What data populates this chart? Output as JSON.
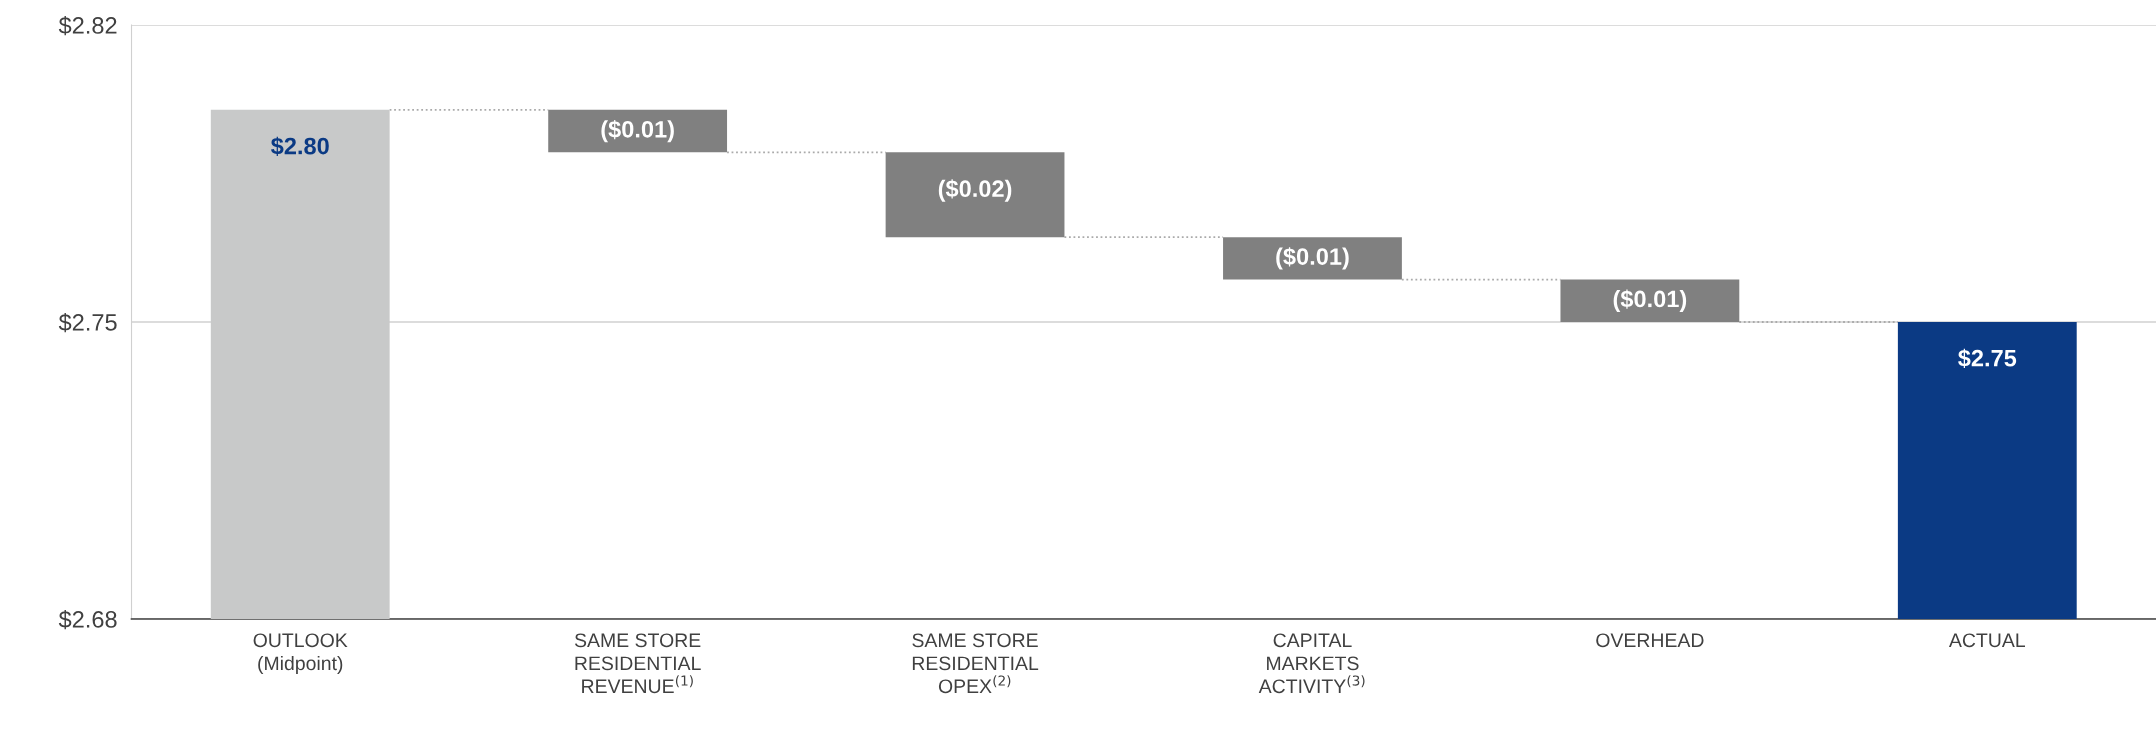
{
  "chart_data": {
    "type": "bar",
    "categories": [
      "OUTLOOK\n(Midpoint)",
      "SAME STORE\nRESIDENTIAL\nREVENUE$^{(1)}$",
      "SAME STORE\nRESIDENTIAL\nOPEX$^{(2)}$",
      "CAPITAL\nMARKETS\nACTIVITY$^{(3)}$",
      "OVERHEAD",
      "ACTUAL"
    ],
    "base": [
      2.68,
      2.8,
      2.79,
      2.77,
      2.76,
      2.68
    ],
    "values": [
      0.12,
      -0.01,
      -0.02,
      -0.01,
      -0.01,
      0.07
    ],
    "colors": [
      "#c8c9c9",
      "#808080",
      "#808080",
      "#808080",
      "#808080",
      "#0b3a84"
    ],
    "value_labels": [
      "$2.80",
      "($0.01)",
      "($0.02)",
      "($0.01)",
      "($0.01)",
      "$2.75"
    ],
    "ylim": [
      2.68,
      2.82
    ],
    "yticks": [
      {
        "value": 2.68,
        "label": "$2.68"
      },
      {
        "value": 2.75,
        "label": "$2.75"
      },
      {
        "value": 2.82,
        "label": "$2.82"
      }
    ],
    "grid": "y"
  }
}
